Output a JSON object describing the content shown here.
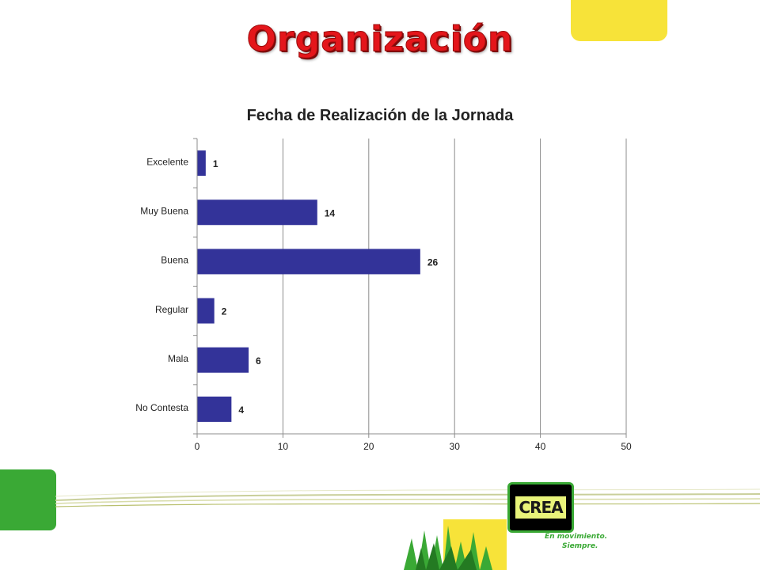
{
  "slide": {
    "title": "Organización"
  },
  "logo": {
    "text": "CREA",
    "tagline_1": "En movimiento.",
    "tagline_2": "Siempre."
  },
  "colors": {
    "bar": "#333399",
    "title": "#e4161b",
    "green": "#3aa935",
    "yellow": "#f7e339"
  },
  "chart_data": {
    "type": "bar",
    "orientation": "horizontal",
    "title": "Fecha de Realización de la Jornada",
    "categories": [
      "Excelente",
      "Muy Buena",
      "Buena",
      "Regular",
      "Mala",
      "No Contesta"
    ],
    "values": [
      1,
      14,
      26,
      2,
      6,
      4
    ],
    "xlim": [
      0,
      50
    ],
    "xticks": [
      0,
      10,
      20,
      30,
      40,
      50
    ],
    "grid": "vertical",
    "legend": "none",
    "data_labels": true
  }
}
